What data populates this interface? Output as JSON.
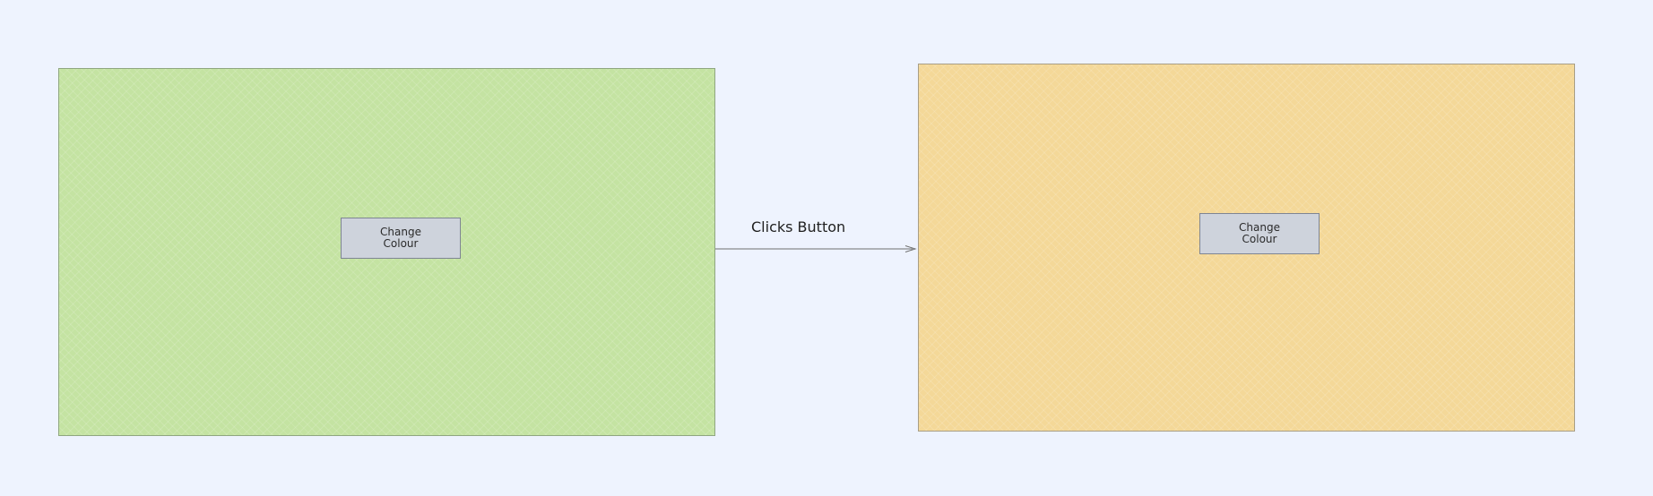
{
  "panels": {
    "before": {
      "button": {
        "line1": "Change",
        "line2": "Colour"
      },
      "fill_color": "#c4e3a2"
    },
    "after": {
      "button": {
        "line1": "Change",
        "line2": "Colour"
      },
      "fill_color": "#f4d898"
    }
  },
  "arrow": {
    "label": "Clicks Button"
  }
}
